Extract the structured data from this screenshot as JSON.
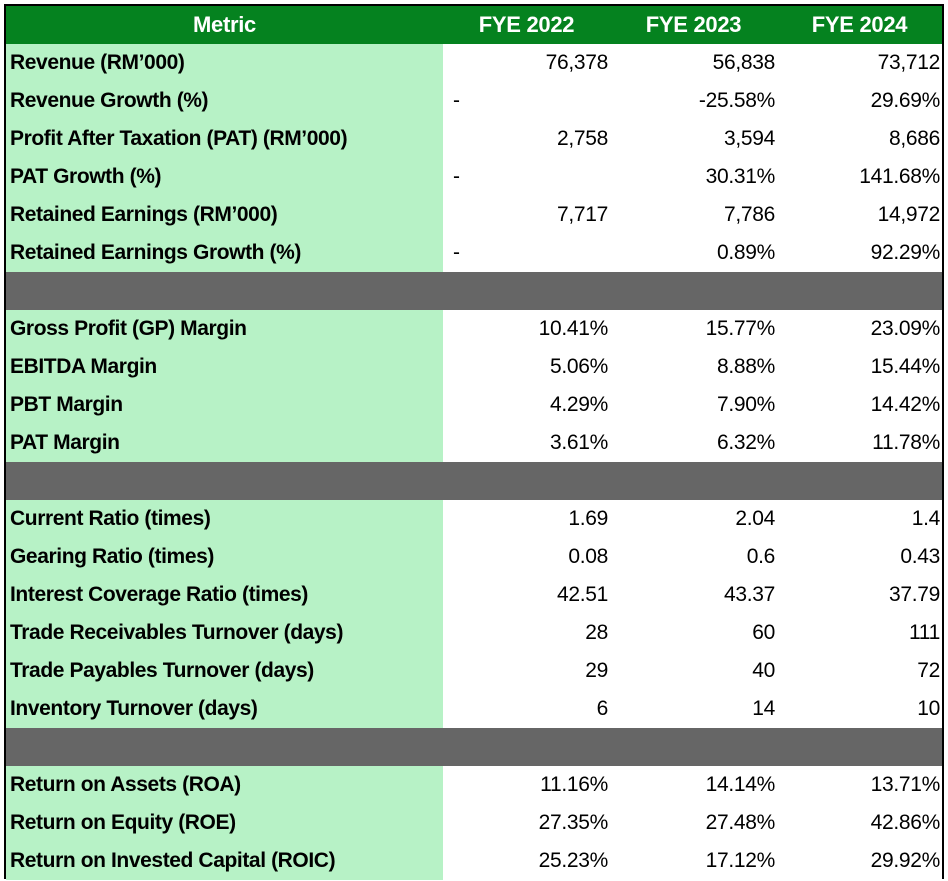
{
  "header": {
    "metric": "Metric",
    "years": [
      "FYE 2022",
      "FYE 2023",
      "FYE 2024"
    ]
  },
  "colors": {
    "header_bg": "#05821f",
    "metric_bg": "#b7f2c6",
    "separator_bg": "#666666"
  },
  "sections": [
    {
      "rows": [
        {
          "label": "Revenue (RM’000)",
          "values": [
            "76,378",
            "56,838",
            "73,712"
          ]
        },
        {
          "label": "Revenue Growth (%)",
          "values": [
            "-",
            "-25.58%",
            "29.69%"
          ]
        },
        {
          "label": "Profit After Taxation (PAT) (RM’000)",
          "values": [
            "2,758",
            "3,594",
            "8,686"
          ]
        },
        {
          "label": "PAT Growth (%)",
          "values": [
            "-",
            "30.31%",
            "141.68%"
          ]
        },
        {
          "label": "Retained Earnings (RM’000)",
          "values": [
            "7,717",
            "7,786",
            "14,972"
          ]
        },
        {
          "label": "Retained Earnings Growth (%)",
          "values": [
            "-",
            "0.89%",
            "92.29%"
          ]
        }
      ]
    },
    {
      "rows": [
        {
          "label": "Gross Profit (GP) Margin",
          "values": [
            "10.41%",
            "15.77%",
            "23.09%"
          ]
        },
        {
          "label": "EBITDA Margin",
          "values": [
            "5.06%",
            "8.88%",
            "15.44%"
          ]
        },
        {
          "label": "PBT Margin",
          "values": [
            "4.29%",
            "7.90%",
            "14.42%"
          ]
        },
        {
          "label": "PAT Margin",
          "values": [
            "3.61%",
            "6.32%",
            "11.78%"
          ]
        }
      ]
    },
    {
      "rows": [
        {
          "label": "Current Ratio (times)",
          "values": [
            "1.69",
            "2.04",
            "1.4"
          ]
        },
        {
          "label": "Gearing Ratio (times)",
          "values": [
            "0.08",
            "0.6",
            "0.43"
          ]
        },
        {
          "label": "Interest Coverage Ratio (times)",
          "values": [
            "42.51",
            "43.37",
            "37.79"
          ]
        },
        {
          "label": "Trade Receivables Turnover (days)",
          "values": [
            "28",
            "60",
            "111"
          ]
        },
        {
          "label": "Trade Payables Turnover (days)",
          "values": [
            "29",
            "40",
            "72"
          ]
        },
        {
          "label": "Inventory Turnover (days)",
          "values": [
            "6",
            "14",
            "10"
          ]
        }
      ]
    },
    {
      "rows": [
        {
          "label": "Return on Assets (ROA)",
          "values": [
            "11.16%",
            "14.14%",
            "13.71%"
          ]
        },
        {
          "label": "Return on Equity (ROE)",
          "values": [
            "27.35%",
            "27.48%",
            "42.86%"
          ]
        },
        {
          "label": "Return on Invested Capital (ROIC)",
          "values": [
            "25.23%",
            "17.12%",
            "29.92%"
          ]
        }
      ]
    }
  ]
}
